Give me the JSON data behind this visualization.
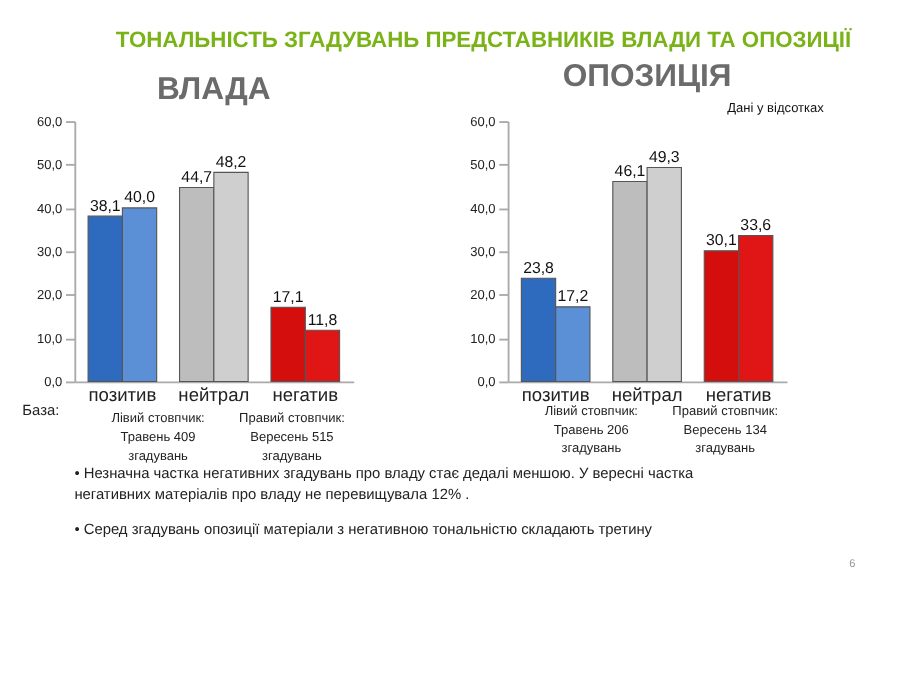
{
  "chart_data": [
    {
      "type": "bar",
      "title": "ВЛАДА",
      "categories": [
        "позитив",
        "нейтрал",
        "негатив"
      ],
      "series": [
        {
          "colors": [
            "#2e6bbf",
            "#bdbdbd",
            "#d40d0d"
          ],
          "values": [
            38.1,
            44.7,
            17.1
          ]
        },
        {
          "colors": [
            "#5b8fd6",
            "#cfcfcf",
            "#e01515"
          ],
          "values": [
            40.0,
            48.2,
            11.8
          ]
        }
      ],
      "value_labels": [
        [
          "38,1",
          "44,7",
          "17,1"
        ],
        [
          "40,0",
          "48,2",
          "11,8"
        ]
      ],
      "ylim": [
        0,
        60
      ],
      "yticks": [
        {
          "value": 0,
          "label": "0,0"
        },
        {
          "value": 10,
          "label": "10,0"
        },
        {
          "value": 20,
          "label": "20,0"
        },
        {
          "value": 30,
          "label": "30,0"
        },
        {
          "value": 40,
          "label": "40,0"
        },
        {
          "value": 50,
          "label": "50,0"
        },
        {
          "value": 60,
          "label": "60,0"
        }
      ],
      "annotations": [
        "ТОНАЛЬНІСТЬ ЗГАДУВАНЬ ПРЕДСТАВНИКІВ ВЛАДИ ТА ОПОЗИЦІЇ",
        "База:",
        "Лівий стовпчик:\nТравень 409\nзгадувань",
        "Правий стовпчик:\nВересень 515\nзгадувань",
        "• Незначна частка негативних згадувань про владу стає дедалі меншою. У вересні частка негативних матеріалів про владу не перевищувала 12% .",
        "• Серед згадувань опозиції матеріали з негативною тональністю складають третину",
        "6"
      ]
    },
    {
      "type": "bar",
      "title": "ОПОЗИЦІЯ",
      "categories": [
        "позитив",
        "нейтрал",
        "негатив"
      ],
      "series": [
        {
          "colors": [
            "#2e6bbf",
            "#bdbdbd",
            "#d40d0d"
          ],
          "values": [
            23.8,
            46.1,
            30.1
          ]
        },
        {
          "colors": [
            "#5b8fd6",
            "#cfcfcf",
            "#e01515"
          ],
          "values": [
            17.2,
            49.3,
            33.6
          ]
        }
      ],
      "value_labels": [
        [
          "23,8",
          "46,1",
          "30,1"
        ],
        [
          "17,2",
          "49,3",
          "33,6"
        ]
      ],
      "ylim": [
        0,
        60
      ],
      "yticks": [
        {
          "value": 0,
          "label": "0,0"
        },
        {
          "value": 10,
          "label": "10,0"
        },
        {
          "value": 20,
          "label": "20,0"
        },
        {
          "value": 30,
          "label": "30,0"
        },
        {
          "value": 40,
          "label": "40,0"
        },
        {
          "value": 50,
          "label": "50,0"
        },
        {
          "value": 60,
          "label": "60,0"
        }
      ],
      "annotations": [
        "Дані у відсотках",
        "Лівий стовпчик:\nТравень 206\nзгадувань",
        "Правий стовпчик:\nВересень 134\nзгадувань"
      ]
    }
  ]
}
